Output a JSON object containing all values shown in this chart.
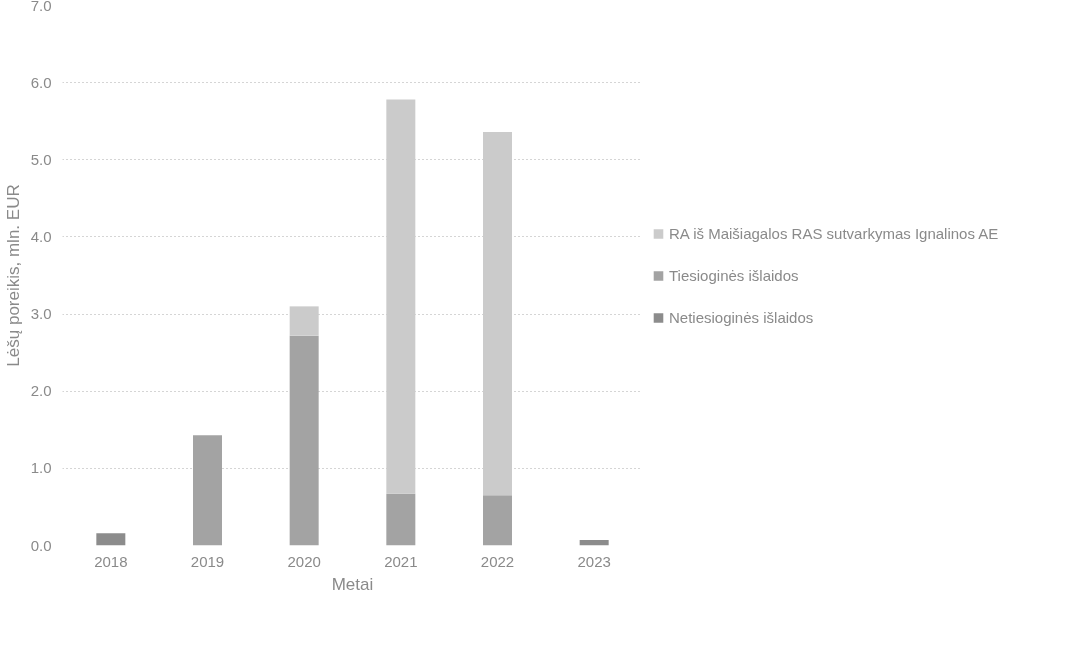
{
  "chart_data": {
    "type": "bar",
    "stacked": true,
    "xlabel": "Metai",
    "ylabel": "Lėšų poreikis, mln. EUR",
    "categories": [
      "2018",
      "2019",
      "2020",
      "2021",
      "2022",
      "2023"
    ],
    "series": [
      {
        "name": "Netiesioginės išlaidos",
        "color": "#8c8c8c",
        "values": [
          0.16,
          0,
          0,
          0,
          0,
          0.07
        ]
      },
      {
        "name": "Tiesioginės išlaidos",
        "color": "#a3a3a3",
        "values": [
          0,
          1.43,
          2.72,
          0.67,
          0.65,
          0
        ]
      },
      {
        "name": "RA iš Maišiagalos RAS sutvarkymas Ignalinos AE",
        "color": "#cbcbcb",
        "values": [
          0,
          0,
          0.38,
          5.11,
          4.71,
          0
        ]
      }
    ],
    "ylim": [
      0,
      7
    ],
    "yticks": [
      {
        "value": 0,
        "label": "0.0"
      },
      {
        "value": 1,
        "label": "1.0"
      },
      {
        "value": 2,
        "label": "2.0"
      },
      {
        "value": 3,
        "label": "3.0"
      },
      {
        "value": 4,
        "label": "4.0"
      },
      {
        "value": 5,
        "label": "5.0"
      },
      {
        "value": 6,
        "label": "6.0"
      },
      {
        "value": 7,
        "label": "7.0"
      }
    ],
    "grid": "y",
    "legend": "right"
  }
}
